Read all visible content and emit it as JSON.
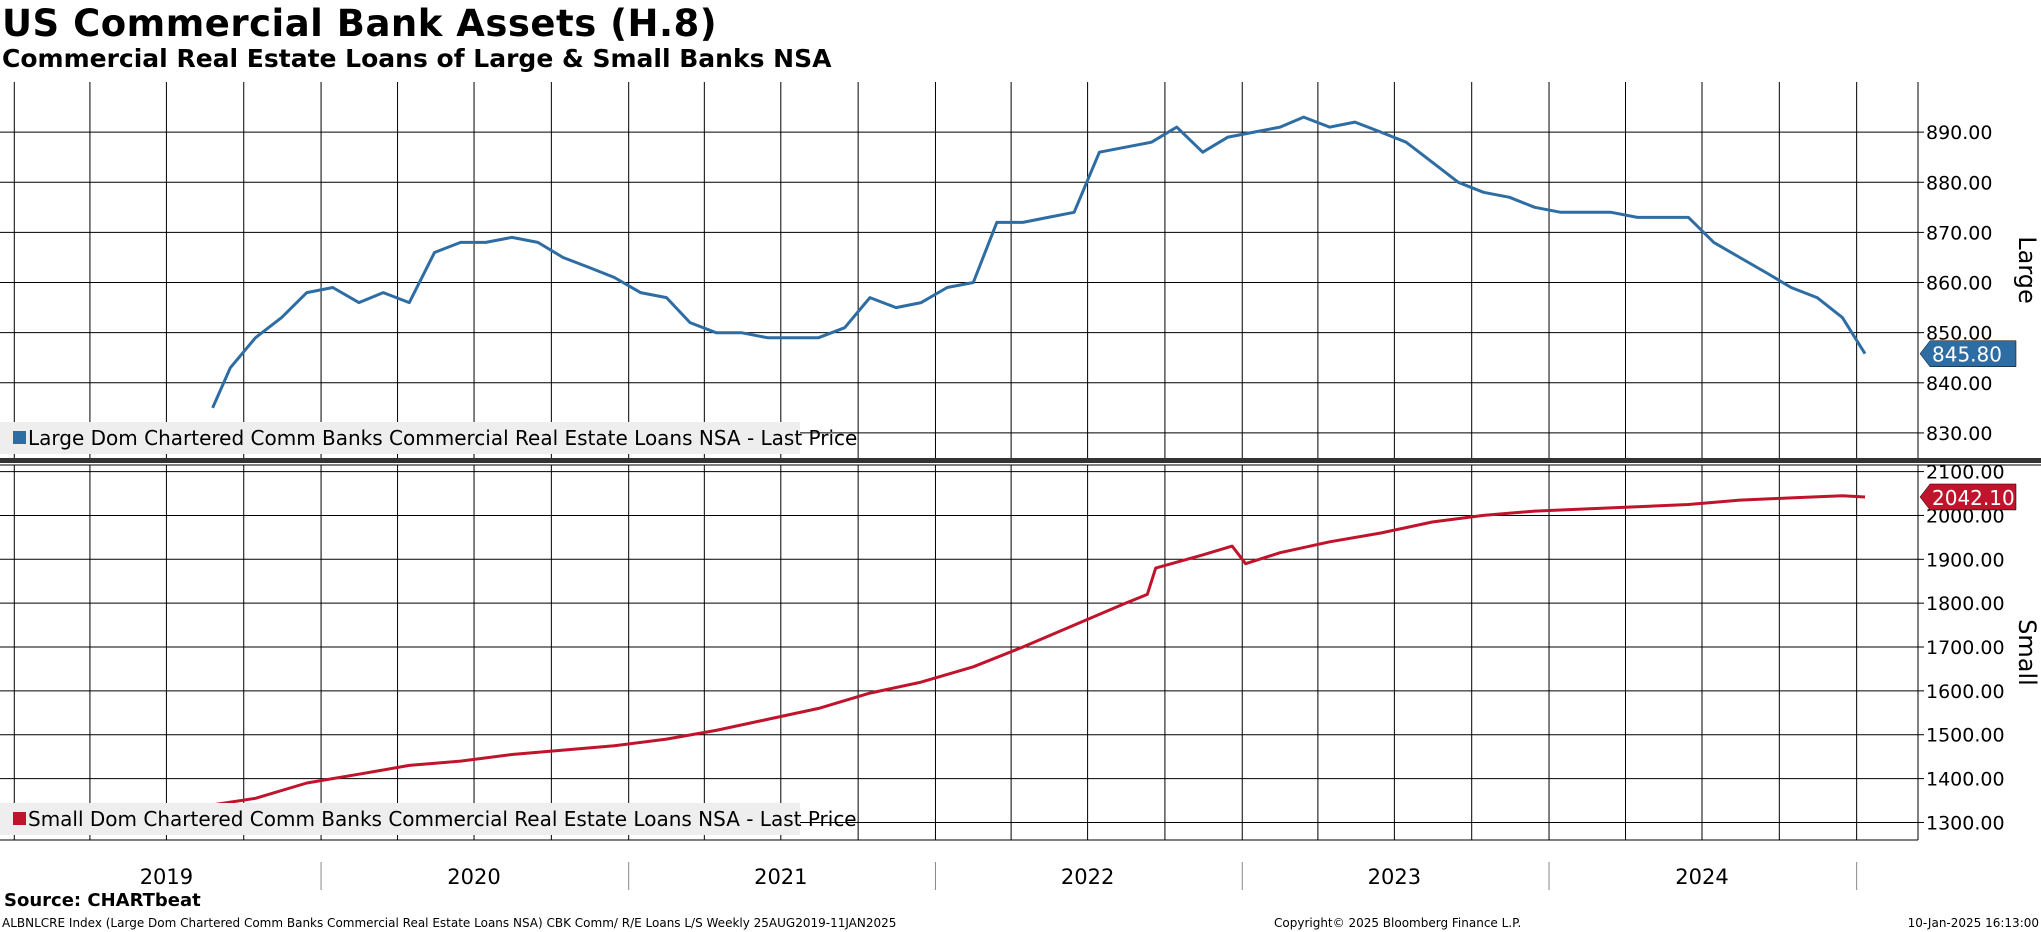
{
  "title": "US Commercial Bank Assets (H.8)",
  "subtitle": "Commercial Real Estate Loans of Large & Small Banks NSA",
  "source": "Source: CHARTbeat",
  "footer": {
    "left": "ALBNLCRE Index (Large Dom Chartered Comm Banks Commercial Real Estate Loans NSA) CBK Comm/ R/E Loans L/S  Weekly 25AUG2019-11JAN2025",
    "center": "Copyright© 2025 Bloomberg Finance L.P.",
    "right": "10-Jan-2025 16:13:00"
  },
  "colors": {
    "large": "#2e6da4",
    "small": "#c0142c",
    "grid": "#000000",
    "legend_bg": "#eeeeee"
  },
  "chart_data": [
    {
      "type": "line",
      "panel": "top",
      "axis_label": "Large",
      "series": [
        {
          "name": "Large Dom Chartered Comm Banks Commercial Real Estate Loans NSA - Last Price",
          "last_value": "845.80",
          "x": [
            "2019-08-25",
            "2019-09-15",
            "2019-10-15",
            "2019-11-15",
            "2019-12-15",
            "2020-01-15",
            "2020-02-15",
            "2020-03-15",
            "2020-04-15",
            "2020-05-15",
            "2020-06-15",
            "2020-07-15",
            "2020-08-15",
            "2020-09-15",
            "2020-10-15",
            "2020-11-15",
            "2020-12-15",
            "2021-01-15",
            "2021-02-15",
            "2021-03-15",
            "2021-04-15",
            "2021-05-15",
            "2021-06-15",
            "2021-07-15",
            "2021-08-15",
            "2021-09-15",
            "2021-10-15",
            "2021-11-15",
            "2021-12-15",
            "2022-01-15",
            "2022-02-15",
            "2022-03-15",
            "2022-04-15",
            "2022-05-15",
            "2022-06-15",
            "2022-07-15",
            "2022-08-15",
            "2022-09-15",
            "2022-10-15",
            "2022-11-15",
            "2022-12-15",
            "2023-01-15",
            "2023-02-15",
            "2023-03-15",
            "2023-04-15",
            "2023-05-15",
            "2023-06-15",
            "2023-07-15",
            "2023-08-15",
            "2023-09-15",
            "2023-10-15",
            "2023-11-15",
            "2023-12-15",
            "2024-01-15",
            "2024-02-15",
            "2024-03-15",
            "2024-04-15",
            "2024-05-15",
            "2024-06-15",
            "2024-07-15",
            "2024-08-15",
            "2024-09-15",
            "2024-10-15",
            "2024-11-15",
            "2024-12-15",
            "2025-01-11"
          ],
          "values": [
            835,
            843,
            849,
            853,
            858,
            859,
            856,
            858,
            856,
            866,
            868,
            868,
            869,
            868,
            865,
            863,
            861,
            858,
            857,
            852,
            850,
            850,
            849,
            849,
            849,
            851,
            857,
            855,
            856,
            859,
            860,
            872,
            872,
            873,
            874,
            886,
            887,
            888,
            891,
            886,
            889,
            890,
            891,
            893,
            891,
            892,
            890,
            888,
            884,
            880,
            878,
            877,
            875,
            874,
            874,
            874,
            873,
            873,
            873,
            868,
            865,
            862,
            859,
            857,
            853,
            845.8
          ]
        }
      ],
      "ylim": [
        825,
        900
      ],
      "yticks": [
        "830.00",
        "840.00",
        "850.00",
        "860.00",
        "870.00",
        "880.00",
        "890.00"
      ]
    },
    {
      "type": "line",
      "panel": "bottom",
      "axis_label": "Small",
      "series": [
        {
          "name": "Small Dom Chartered Comm Banks Commercial Real Estate Loans NSA - Last Price",
          "last_value": "2042.10",
          "x": [
            "2019-08-25",
            "2019-10-15",
            "2019-12-15",
            "2020-02-15",
            "2020-04-15",
            "2020-06-15",
            "2020-08-15",
            "2020-10-15",
            "2020-12-15",
            "2021-02-15",
            "2021-04-15",
            "2021-06-15",
            "2021-08-15",
            "2021-10-15",
            "2021-12-15",
            "2022-02-15",
            "2022-04-15",
            "2022-06-15",
            "2022-08-15",
            "2022-09-10",
            "2022-09-20",
            "2022-11-15",
            "2022-12-20",
            "2023-01-05",
            "2023-02-15",
            "2023-04-15",
            "2023-06-15",
            "2023-08-15",
            "2023-10-15",
            "2023-12-15",
            "2024-02-15",
            "2024-04-15",
            "2024-06-15",
            "2024-08-15",
            "2024-10-15",
            "2024-12-15",
            "2025-01-11"
          ],
          "values": [
            1340,
            1355,
            1390,
            1410,
            1430,
            1440,
            1455,
            1465,
            1475,
            1490,
            1510,
            1535,
            1560,
            1595,
            1620,
            1655,
            1700,
            1750,
            1800,
            1820,
            1880,
            1910,
            1930,
            1890,
            1915,
            1940,
            1960,
            1985,
            2000,
            2010,
            2015,
            2020,
            2025,
            2035,
            2040,
            2045,
            2042.1
          ]
        }
      ],
      "ylim": [
        1260,
        2115
      ],
      "yticks": [
        "1300.00",
        "1400.00",
        "1500.00",
        "1600.00",
        "1700.00",
        "1800.00",
        "1900.00",
        "2000.00",
        "2100.00"
      ]
    }
  ],
  "x_axis": {
    "range": [
      "2018-12-15",
      "2025-03-15"
    ],
    "year_labels": [
      {
        "label": "2019",
        "mid": "2019-07-01"
      },
      {
        "label": "2020",
        "mid": "2020-07-01"
      },
      {
        "label": "2021",
        "mid": "2021-07-01"
      },
      {
        "label": "2022",
        "mid": "2022-07-01"
      },
      {
        "label": "2023",
        "mid": "2023-07-01"
      },
      {
        "label": "2024",
        "mid": "2024-07-01"
      }
    ]
  }
}
